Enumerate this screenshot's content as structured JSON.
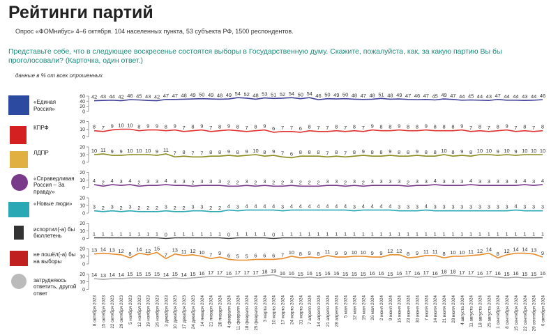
{
  "chart_data": {
    "type": "line",
    "title": "Рейтинги партий",
    "subtitle": "Опрос «ФОМнибус» 4–6 октября. 104 населенных пункта, 53 субъекта РФ, 1500 респондентов.",
    "question": "Представьте себе, что в следующее воскресенье состоятся выборы в Государственную думу. Скажите, пожалуйста, как, за какую партию Вы бы проголосовали? (Карточка, один ответ.)",
    "note": "данные в % от всех опрошенных",
    "x": [
      "8 октября 2023",
      "15 октября 2023",
      "22 октября 2023",
      "29 октября 2023",
      "5 ноября 2023",
      "12 ноября 2023",
      "19 ноября 2023",
      "26 ноября 2023",
      "3 декабря 2023",
      "10 декабря 2023",
      "17 декабря 2023",
      "24 декабря 2023",
      "14 января 2024",
      "21 января 2024",
      "28 января 2024",
      "4 февраля 2024",
      "11 февраля 2024",
      "18 февраля 2024",
      "25 февраля 2024",
      "3 марта 2024",
      "10 марта 2024",
      "17 марта 2024",
      "24 марта 2024",
      "31 марта 2024",
      "7 апреля 2024",
      "14 апреля 2024",
      "21 апреля 2024",
      "28 апреля 2024",
      "5 мая 2024",
      "12 мая 2024",
      "19 мая 2024",
      "26 мая 2024",
      "2 июня 2024",
      "9 июня 2024",
      "16 июня 2024",
      "23 июня 2024",
      "30 июня 2024",
      "7 июля 2024",
      "14 июля 2024",
      "21 июля 2024",
      "28 июля 2024",
      "4 августа 2024",
      "11 августа 2024",
      "18 августа 2024",
      "25 августа 2024",
      "1 сентября 2024",
      "8 сентября 2024",
      "15 сентября 2024",
      "22 сентября 2024",
      "29 сентября 2024",
      "6 октября 2024"
    ],
    "series": [
      {
        "name": "«Единая Россия»",
        "color": "#40409a",
        "ylim": [
          0,
          60
        ],
        "yticks": [
          0,
          20,
          40,
          60
        ],
        "values": [
          42,
          43,
          44,
          42,
          46,
          45,
          43,
          42,
          47,
          47,
          48,
          49,
          50,
          49,
          48,
          49,
          54,
          52,
          48,
          53,
          51,
          52,
          54,
          50,
          54,
          46,
          50,
          49,
          50,
          48,
          47,
          48,
          51,
          48,
          49,
          47,
          46,
          47,
          45,
          49,
          47,
          44,
          45,
          44,
          43,
          47,
          44,
          44,
          43,
          44,
          46
        ]
      },
      {
        "name": "КПРФ",
        "color": "#e03030",
        "ylim": [
          0,
          20
        ],
        "yticks": [
          0,
          10,
          20
        ],
        "values": [
          8,
          7,
          9,
          10,
          10,
          8,
          9,
          9,
          8,
          9,
          7,
          8,
          9,
          7,
          8,
          9,
          8,
          7,
          8,
          9,
          6,
          7,
          7,
          6,
          8,
          7,
          7,
          8,
          7,
          8,
          7,
          9,
          8,
          8,
          9,
          8,
          8,
          9,
          8,
          8,
          8,
          9,
          7,
          8,
          7,
          8,
          9,
          7,
          8,
          7,
          8
        ]
      },
      {
        "name": "ЛДПР",
        "color": "#8a8a1e",
        "ylim": [
          0,
          20
        ],
        "yticks": [
          0,
          10,
          20
        ],
        "values": [
          10,
          11,
          9,
          9,
          10,
          10,
          10,
          9,
          11,
          7,
          8,
          7,
          7,
          8,
          8,
          9,
          8,
          9,
          10,
          8,
          9,
          7,
          6,
          8,
          8,
          8,
          7,
          8,
          7,
          8,
          9,
          8,
          8,
          9,
          8,
          8,
          9,
          8,
          8,
          10,
          8,
          9,
          8,
          10,
          10,
          9,
          10,
          9,
          10,
          10,
          10
        ]
      },
      {
        "name": "«Справедливая Россия – За правду»",
        "color": "#7a3a8a",
        "ylim": [
          0,
          20
        ],
        "yticks": [
          0,
          10,
          20
        ],
        "values": [
          4,
          2,
          4,
          3,
          4,
          2,
          3,
          3,
          4,
          3,
          3,
          2,
          3,
          3,
          3,
          2,
          2,
          3,
          2,
          3,
          2,
          2,
          3,
          2,
          2,
          2,
          3,
          3,
          2,
          3,
          2,
          3,
          3,
          3,
          3,
          2,
          3,
          3,
          4,
          3,
          3,
          3,
          4,
          3,
          3,
          3,
          3,
          3,
          4,
          3,
          4
        ]
      },
      {
        "name": "«Новые люди»",
        "color": "#2aa9b5",
        "ylim": [
          0,
          20
        ],
        "yticks": [
          0,
          10,
          20
        ],
        "values": [
          3,
          2,
          3,
          2,
          3,
          2,
          2,
          2,
          3,
          2,
          2,
          3,
          3,
          2,
          2,
          4,
          3,
          4,
          4,
          4,
          4,
          3,
          4,
          4,
          4,
          4,
          4,
          4,
          4,
          3,
          4,
          4,
          4,
          4,
          3,
          3,
          3,
          4,
          3,
          3,
          3,
          3,
          3,
          3,
          3,
          3,
          3,
          4,
          3,
          3,
          3
        ]
      },
      {
        "name": "испортил(-а) бы бюллетень",
        "color": "#444444",
        "ylim": [
          0,
          20
        ],
        "yticks": [
          0,
          10,
          20
        ],
        "values": [
          1,
          1,
          1,
          1,
          1,
          1,
          1,
          1,
          0,
          1,
          1,
          1,
          1,
          1,
          1,
          0,
          1,
          1,
          1,
          1,
          0,
          1,
          1,
          1,
          1,
          1,
          1,
          1,
          1,
          1,
          1,
          1,
          1,
          1,
          1,
          1,
          1,
          1,
          1,
          1,
          1,
          1,
          1,
          1,
          1,
          1,
          1,
          1,
          1,
          1,
          1
        ]
      },
      {
        "name": "не пошёл(-а) бы на выборы",
        "color": "#e8892a",
        "ylim": [
          0,
          20
        ],
        "yticks": [
          0,
          10,
          20
        ],
        "values": [
          13,
          14,
          13,
          12,
          8,
          14,
          12,
          15,
          7,
          13,
          11,
          12,
          10,
          7,
          9,
          6,
          5,
          5,
          6,
          6,
          6,
          7,
          10,
          8,
          9,
          8,
          11,
          9,
          9,
          10,
          10,
          9,
          9,
          12,
          12,
          8,
          9,
          11,
          11,
          8,
          10,
          10,
          11,
          12,
          14,
          8,
          12,
          14,
          14,
          13,
          9
        ]
      },
      {
        "name": "затрудняюсь ответить, другой ответ",
        "color": "#aaaaaa",
        "ylim": [
          0,
          20
        ],
        "yticks": [
          0,
          10,
          20
        ],
        "values": [
          14,
          13,
          14,
          14,
          15,
          15,
          15,
          15,
          14,
          15,
          14,
          15,
          16,
          17,
          17,
          16,
          17,
          17,
          17,
          18,
          19,
          16,
          16,
          15,
          16,
          15,
          16,
          16,
          15,
          15,
          15,
          16,
          16,
          15,
          16,
          17,
          16,
          17,
          16,
          18,
          18,
          17,
          17,
          16,
          17,
          16,
          15,
          16,
          15,
          15,
          16
        ]
      }
    ]
  }
}
